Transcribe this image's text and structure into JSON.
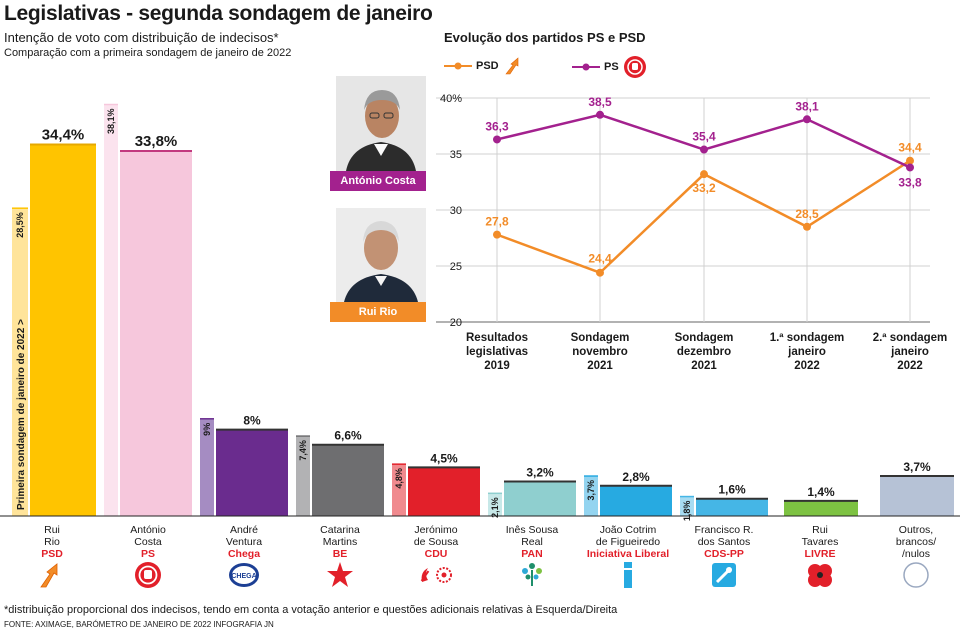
{
  "header": {
    "title": "Legislativas - segunda sondagem de janeiro",
    "subtitle": "Intenção de voto com distribuição de indecisos*",
    "comparison_note": "Comparação com a primeira sondagem de janeiro de 2022"
  },
  "chart_data": [
    {
      "type": "bar",
      "title": "Intenção de voto com distribuição de indecisos*",
      "subtitle": "Comparação com a primeira sondagem de janeiro de 2022",
      "series": [
        {
          "name": "Primeira sondagem de janeiro de 2022",
          "values": [
            28.5,
            38.1,
            9,
            7.4,
            4.8,
            2.1,
            3.7,
            1.8,
            null,
            null
          ]
        },
        {
          "name": "Segunda sondagem de janeiro de 2022",
          "values": [
            34.4,
            33.8,
            8,
            6.6,
            4.5,
            3.2,
            2.8,
            1.6,
            1.4,
            3.7
          ]
        }
      ],
      "value_labels": [
        "34,4%",
        "33,8%",
        "8%",
        "6,6%",
        "4,5%",
        "3,2%",
        "2,8%",
        "1,6%",
        "1,4%",
        "3,7%"
      ],
      "previous_labels": [
        "28,5%",
        "38,1%",
        "9%",
        "7,4%",
        "4,8%",
        "2,1%",
        "3,7%",
        "1,8%",
        "",
        ""
      ],
      "first_poll_annotation": "Primeira sondagem de janeiro de 2022",
      "categories": [
        {
          "name": "Rui Rio",
          "line1": "Rui",
          "line2": "Rio",
          "party": "PSD"
        },
        {
          "name": "António Costa",
          "line1": "António",
          "line2": "Costa",
          "party": "PS"
        },
        {
          "name": "André Ventura",
          "line1": "André",
          "line2": "Ventura",
          "party": "Chega"
        },
        {
          "name": "Catarina Martins",
          "line1": "Catarina",
          "line2": "Martins",
          "party": "BE"
        },
        {
          "name": "Jerónimo de Sousa",
          "line1": "Jerónimo",
          "line2": "de Sousa",
          "party": "CDU"
        },
        {
          "name": "Inês Sousa Real",
          "line1": "Inês Sousa",
          "line2": "Real",
          "party": "PAN"
        },
        {
          "name": "João Cotrim de Figueiredo",
          "line1": "João Cotrim",
          "line2": "de Figueiredo",
          "party": "Iniciativa Liberal"
        },
        {
          "name": "Francisco R. dos Santos",
          "line1": "Francisco R.",
          "line2": "dos Santos",
          "party": "CDS-PP"
        },
        {
          "name": "Rui Tavares",
          "line1": "Rui",
          "line2": "Tavares",
          "party": "LIVRE"
        },
        {
          "name": "Outros, brancos/ /nulos",
          "line1": "Outros,",
          "line2": "brancos/",
          "line3": "/nulos",
          "party": ""
        }
      ],
      "colors": [
        "#ffc400",
        "#f6c7dc",
        "#6a2c8e",
        "#6e6e70",
        "#e2202a",
        "#8fcfcf",
        "#27aae1",
        "#45b6e6",
        "#7dc242",
        "#b6c2d6"
      ],
      "light_colors": [
        "#ffe49a",
        "#fbe3ee",
        "#a58cc2",
        "#b2b2b4",
        "#f08a8e",
        "#c7e8e8",
        "#93d4f0",
        "#a7dcf2",
        "#bfe3a0",
        "#d9e0ea"
      ],
      "party_text_colors": [
        "#e2202a",
        "#e2202a",
        "#e2202a",
        "#e2202a",
        "#e2202a",
        "#e2202a",
        "#e2202a",
        "#e2202a",
        "#e2202a",
        "#1a1a1a"
      ]
    },
    {
      "type": "line",
      "title": "Evolução dos partidos PS e PSD",
      "x": [
        "Resultados legislativas 2019",
        "Sondagem novembro 2021",
        "Sondagem dezembro 2021",
        "1.ª sondagem janeiro 2022",
        "2.ª sondagem janeiro 2022"
      ],
      "x_lines": [
        [
          "Resultados",
          "legislativas",
          "2019"
        ],
        [
          "Sondagem",
          "novembro",
          "2021"
        ],
        [
          "Sondagem",
          "dezembro",
          "2021"
        ],
        [
          "1.ª sondagem",
          "janeiro",
          "2022"
        ],
        [
          "2.ª sondagem",
          "janeiro",
          "2022"
        ]
      ],
      "series": [
        {
          "name": "PSD",
          "color": "#f28c28",
          "values": [
            27.8,
            24.4,
            33.2,
            28.5,
            34.4
          ],
          "labels": [
            "27,8",
            "24,4",
            "33,2",
            "28,5",
            "34,4"
          ]
        },
        {
          "name": "PS",
          "color": "#a3218e",
          "values": [
            36.3,
            38.5,
            35.4,
            38.1,
            33.8
          ],
          "labels": [
            "36,3",
            "38,5",
            "35,4",
            "38,1",
            "33,8"
          ]
        }
      ],
      "ylim": [
        20,
        40
      ],
      "yticks": [
        "40%",
        "35",
        "30",
        "25",
        "20"
      ],
      "ytick_values": [
        40,
        35,
        30,
        25,
        20
      ]
    }
  ],
  "legend": {
    "psd": "PSD",
    "ps": "PS"
  },
  "photos": {
    "costa": "António Costa",
    "rio": "Rui Rio"
  },
  "footer": {
    "note": "*distribuição proporcional dos indecisos, tendo em conta a votação anterior e questões adicionais relativas à Esquerda/Direita",
    "source": "FONTE: AXIMAGE, BARÓMETRO DE JANEIRO DE 2022    INFOGRAFIA JN"
  },
  "logos": [
    "psd-logo",
    "ps-logo",
    "chega-logo",
    "be-logo",
    "cdu-logo",
    "pan-logo",
    "il-logo",
    "cds-logo",
    "livre-logo",
    "outros-logo"
  ],
  "logo_texts": {
    "chega": "CHEGA"
  }
}
